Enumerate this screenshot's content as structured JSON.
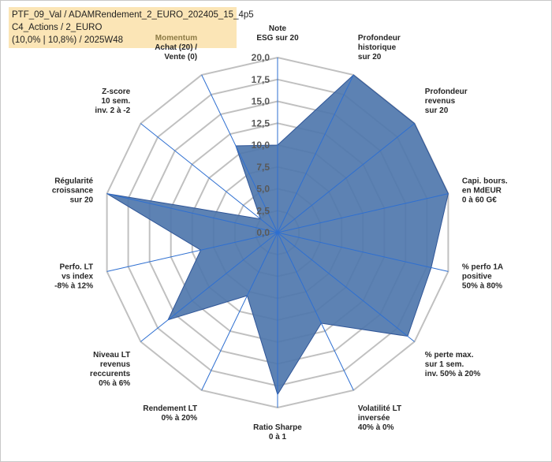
{
  "title_box": {
    "line1": "PTF_09_Val / ADAMRendement_2_EURO_202405_15_4p5",
    "line2": "C4_Actions / 2_EURO",
    "line3": "(10,0% | 10,8%) / 2025W48"
  },
  "chart_data": {
    "type": "radar",
    "title": "PTF_09_Val / ADAMRendement_2_EURO_202405_15_4p5",
    "rlim": [
      0,
      20
    ],
    "ticks": [
      0,
      2.5,
      5,
      7.5,
      10,
      12.5,
      15,
      17.5,
      20
    ],
    "tick_labels": [
      "0,0",
      "2,5",
      "5,0",
      "7,5",
      "10,0",
      "12,5",
      "15,0",
      "17,5",
      "20,0"
    ],
    "axes": [
      {
        "label": [
          "Note",
          "ESG sur 20"
        ],
        "value": 10.0
      },
      {
        "label": [
          "Profondeur",
          "historique",
          "sur 20"
        ],
        "value": 20.0
      },
      {
        "label": [
          "Profondeur",
          "revenus",
          "sur 20"
        ],
        "value": 20.0
      },
      {
        "label": [
          "Capi. bours.",
          "en MdEUR",
          "0 à 60 G€"
        ],
        "value": 20.0
      },
      {
        "label": [
          "% perfo 1A",
          "positive",
          "50% à 80%"
        ],
        "value": 18.0
      },
      {
        "label": [
          "% perte max.",
          "sur 1 sem.",
          "inv. 50% à 20%"
        ],
        "value": 19.0
      },
      {
        "label": [
          "Volatilité LT",
          "inversée",
          "40% à 0%"
        ],
        "value": 11.5
      },
      {
        "label": [
          "Ratio Sharpe",
          "0 à 1"
        ],
        "value": 18.5
      },
      {
        "label": [
          "Rendement LT",
          "0% à 20%"
        ],
        "value": 8.0
      },
      {
        "label": [
          "Niveau LT",
          "revenus",
          "reccurents",
          "0% à 6%"
        ],
        "value": 16.0
      },
      {
        "label": [
          "Perfo. LT",
          "vs index",
          "-8% à 12%"
        ],
        "value": 9.0
      },
      {
        "label": [
          "Régularité",
          "croissance",
          "sur 20"
        ],
        "value": 20.0
      },
      {
        "label": [
          "Z-score",
          "10 sem.",
          "inv. 2 à -2"
        ],
        "value": 2.5
      },
      {
        "label": [
          "Momentum",
          "Achat (20) /",
          "Vente (0)"
        ],
        "value": 11.0
      }
    ],
    "colors": {
      "fill": "#4f77ad",
      "stroke": "#2f5597",
      "grid": "#c0c0c0",
      "spoke": "#2e6fd1",
      "momentum_first_line": "#8c7a45"
    }
  }
}
